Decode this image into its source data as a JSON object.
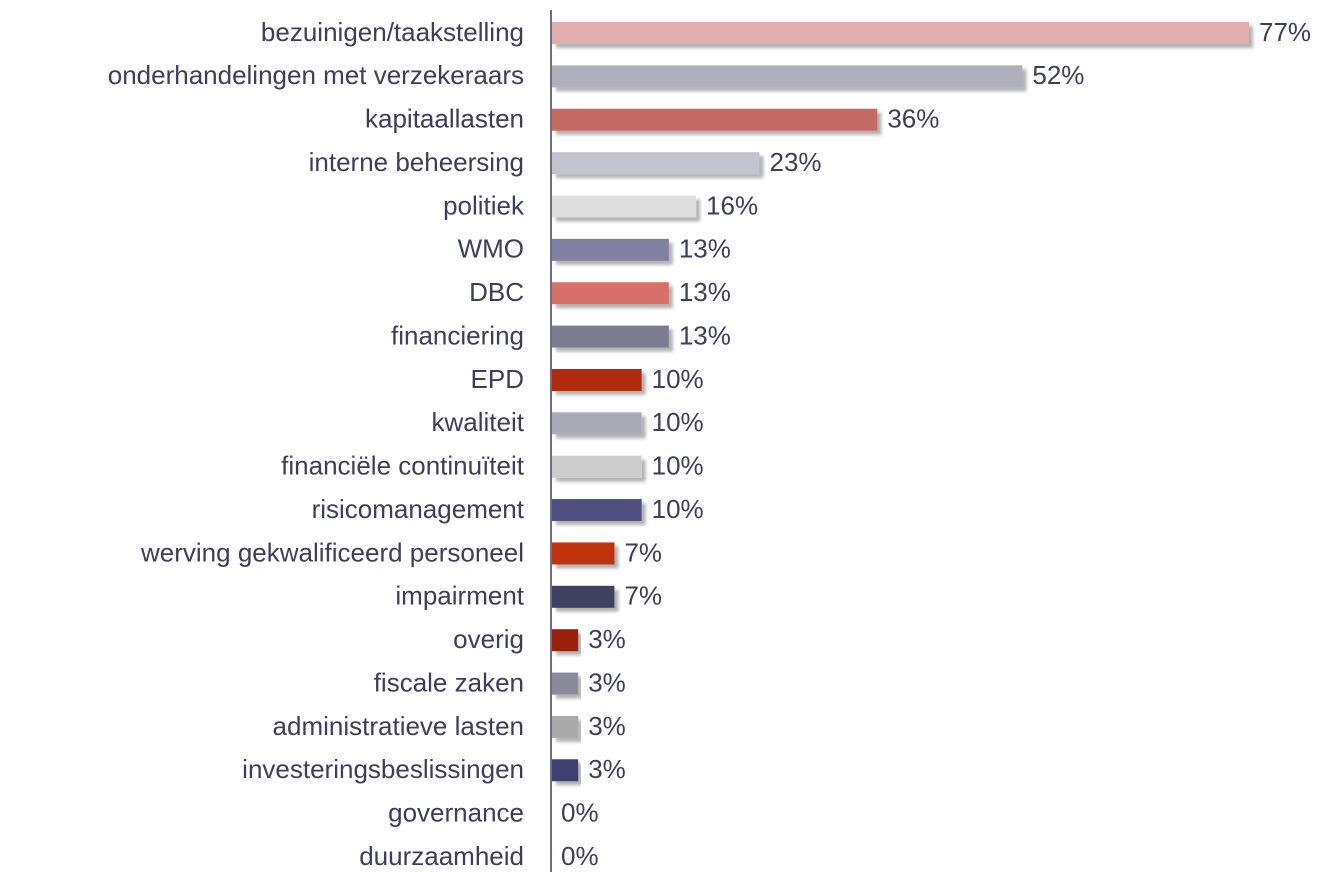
{
  "chart_data": {
    "type": "barh",
    "categories": [
      "bezuinigen/taakstelling",
      "onderhandelingen met verzekeraars",
      "kapitaallasten",
      "interne beheersing",
      "politiek",
      "WMO",
      "DBC",
      "financiering",
      "EPD",
      "kwaliteit",
      "financiële continuïteit",
      "risicomanagement",
      "werving gekwalificeerd personeel",
      "impairment",
      "overig ",
      "fiscale zaken",
      "administratieve lasten",
      "investeringsbeslissingen",
      "governance",
      "duurzaamheid"
    ],
    "values": [
      77,
      52,
      36,
      23,
      16,
      13,
      13,
      13,
      10,
      10,
      10,
      10,
      7,
      7,
      3,
      3,
      3,
      3,
      0,
      0
    ],
    "value_labels": [
      "77%",
      "52%",
      "36%",
      "23%",
      "16%",
      "13%",
      "13%",
      "13%",
      "10%",
      "10%",
      "10%",
      "10%",
      "7%",
      "7%",
      "3%",
      "3%",
      "3%",
      "3%",
      "0%",
      "0%"
    ],
    "colors": [
      "#e0aeae",
      "#b0b0bc",
      "#c56a64",
      "#c4c4d0",
      "#dedede",
      "#8080a0",
      "#d8706a",
      "#7c7c90",
      "#b02a10",
      "#aaaab8",
      "#cccccc",
      "#505080",
      "#c03010",
      "#404060",
      "#9a2010",
      "#8a8a9a",
      "#aaaaaa",
      "#404070",
      "#404070",
      "#404070"
    ]
  }
}
